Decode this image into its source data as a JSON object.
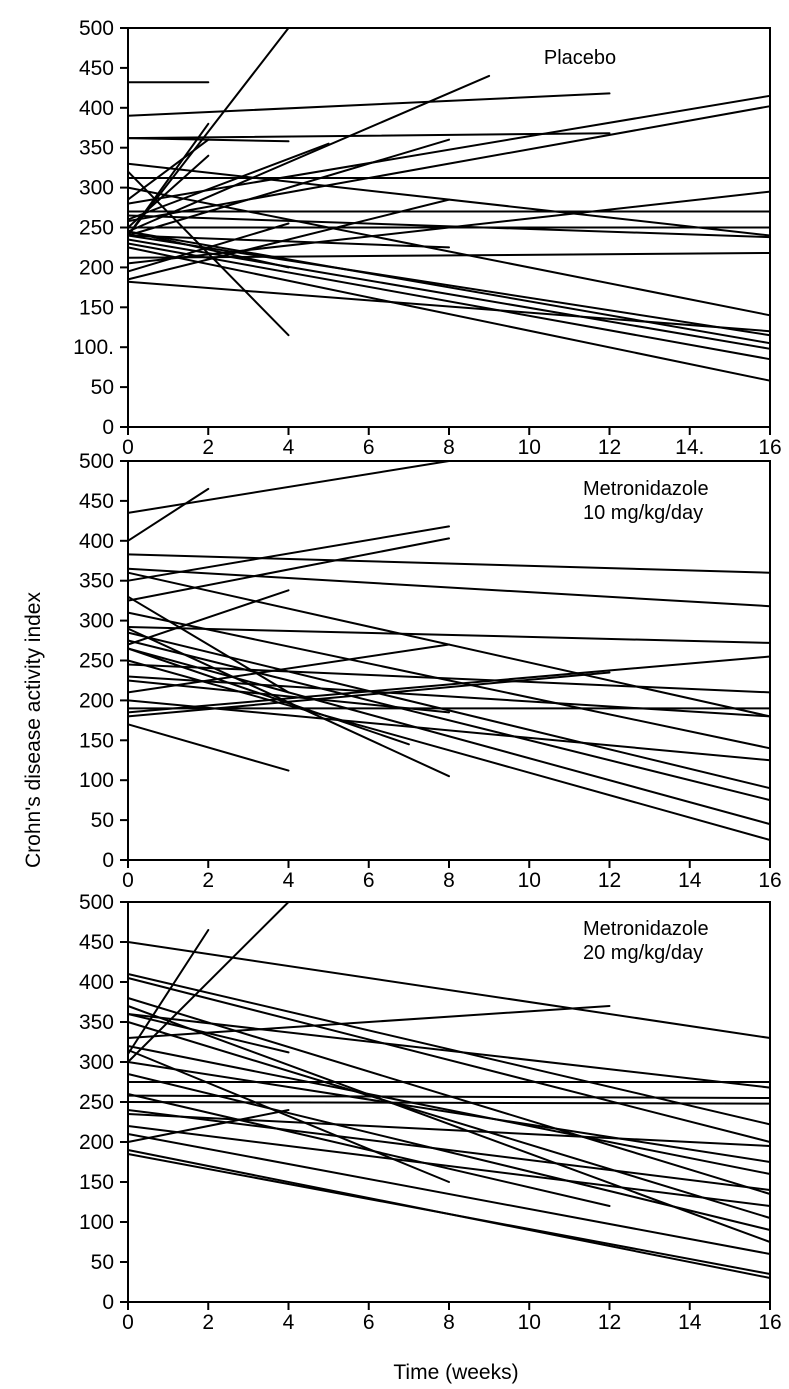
{
  "figure": {
    "ylabel": "Crohn's disease activity index",
    "xlabel": "Time (weeks)"
  },
  "chart_data": [
    {
      "type": "line",
      "label": "Placebo",
      "xlim": [
        0,
        16
      ],
      "ylim": [
        0,
        500
      ],
      "x_ticks": [
        0,
        2,
        4,
        6,
        8,
        10,
        12,
        14,
        16
      ],
      "x_tick_labels": [
        "0",
        "2",
        "4",
        "6",
        "8",
        "10",
        "12",
        "14.",
        "16"
      ],
      "y_ticks": [
        0,
        50,
        100,
        150,
        200,
        250,
        300,
        350,
        400,
        450,
        500
      ],
      "y_tick_labels": [
        "0",
        "50",
        "100.",
        "150",
        "200",
        "250",
        "300",
        "350",
        "400",
        "450",
        "500"
      ],
      "grid": false,
      "series": [
        {
          "x": [
            0,
            2
          ],
          "y": [
            432,
            432
          ]
        },
        {
          "x": [
            0,
            12
          ],
          "y": [
            390,
            418
          ]
        },
        {
          "x": [
            0,
            4
          ],
          "y": [
            362,
            358
          ]
        },
        {
          "x": [
            0,
            12
          ],
          "y": [
            362,
            368
          ]
        },
        {
          "x": [
            0,
            16
          ],
          "y": [
            312,
            312
          ]
        },
        {
          "x": [
            0,
            16
          ],
          "y": [
            300,
            140
          ]
        },
        {
          "x": [
            0,
            16
          ],
          "y": [
            270,
            270
          ]
        },
        {
          "x": [
            0,
            16
          ],
          "y": [
            280,
            415
          ]
        },
        {
          "x": [
            0,
            16
          ],
          "y": [
            258,
            402
          ]
        },
        {
          "x": [
            0,
            16
          ],
          "y": [
            265,
            238
          ]
        },
        {
          "x": [
            0,
            16
          ],
          "y": [
            250,
            250
          ]
        },
        {
          "x": [
            0,
            16
          ],
          "y": [
            240,
            115
          ]
        },
        {
          "x": [
            0,
            16
          ],
          "y": [
            235,
            98
          ]
        },
        {
          "x": [
            0,
            16
          ],
          "y": [
            230,
            85
          ]
        },
        {
          "x": [
            0,
            16
          ],
          "y": [
            225,
            58
          ]
        },
        {
          "x": [
            0,
            16
          ],
          "y": [
            205,
            295
          ]
        },
        {
          "x": [
            0,
            16
          ],
          "y": [
            212,
            218
          ]
        },
        {
          "x": [
            0,
            16
          ],
          "y": [
            182,
            120
          ]
        },
        {
          "x": [
            0,
            16
          ],
          "y": [
            245,
            105
          ]
        },
        {
          "x": [
            0,
            4
          ],
          "y": [
            240,
            500
          ]
        },
        {
          "x": [
            0,
            9
          ],
          "y": [
            245,
            440
          ]
        },
        {
          "x": [
            0,
            8
          ],
          "y": [
            240,
            360
          ]
        },
        {
          "x": [
            0,
            5
          ],
          "y": [
            260,
            355
          ]
        },
        {
          "x": [
            0,
            2
          ],
          "y": [
            240,
            380
          ]
        },
        {
          "x": [
            0,
            2
          ],
          "y": [
            285,
            360
          ]
        },
        {
          "x": [
            0,
            2
          ],
          "y": [
            250,
            340
          ]
        },
        {
          "x": [
            0,
            4
          ],
          "y": [
            320,
            115
          ]
        },
        {
          "x": [
            0,
            4
          ],
          "y": [
            195,
            255
          ]
        },
        {
          "x": [
            0,
            8
          ],
          "y": [
            185,
            285
          ]
        },
        {
          "x": [
            0,
            8
          ],
          "y": [
            240,
            225
          ]
        },
        {
          "x": [
            0,
            16
          ],
          "y": [
            330,
            240
          ]
        },
        {
          "x": [
            0,
            4
          ],
          "y": [
            245,
            200
          ]
        }
      ]
    },
    {
      "type": "line",
      "label": "Metronidazole\n10 mg/kg/day",
      "xlim": [
        0,
        16
      ],
      "ylim": [
        0,
        500
      ],
      "x_ticks": [
        0,
        2,
        4,
        6,
        8,
        10,
        12,
        14,
        16
      ],
      "x_tick_labels": [
        "0",
        "2",
        "4",
        "6",
        "8",
        "10",
        "12",
        "14",
        "16"
      ],
      "y_ticks": [
        0,
        50,
        100,
        150,
        200,
        250,
        300,
        350,
        400,
        450,
        500
      ],
      "y_tick_labels": [
        "0",
        "50",
        "100",
        "150",
        "200",
        "250",
        "300",
        "350",
        "400",
        "450",
        "500"
      ],
      "grid": false,
      "series": [
        {
          "x": [
            0,
            8
          ],
          "y": [
            435,
            500
          ]
        },
        {
          "x": [
            0,
            2
          ],
          "y": [
            400,
            465
          ]
        },
        {
          "x": [
            0,
            16
          ],
          "y": [
            383,
            360
          ]
        },
        {
          "x": [
            0,
            16
          ],
          "y": [
            365,
            318
          ]
        },
        {
          "x": [
            0,
            8
          ],
          "y": [
            350,
            418
          ]
        },
        {
          "x": [
            0,
            8
          ],
          "y": [
            325,
            403
          ]
        },
        {
          "x": [
            0,
            4
          ],
          "y": [
            270,
            338
          ]
        },
        {
          "x": [
            0,
            16
          ],
          "y": [
            292,
            272
          ]
        },
        {
          "x": [
            0,
            16
          ],
          "y": [
            360,
            180
          ]
        },
        {
          "x": [
            0,
            16
          ],
          "y": [
            310,
            140
          ]
        },
        {
          "x": [
            0,
            16
          ],
          "y": [
            285,
            90
          ]
        },
        {
          "x": [
            0,
            16
          ],
          "y": [
            275,
            75
          ]
        },
        {
          "x": [
            0,
            16
          ],
          "y": [
            265,
            45
          ]
        },
        {
          "x": [
            0,
            16
          ],
          "y": [
            250,
            25
          ]
        },
        {
          "x": [
            0,
            16
          ],
          "y": [
            245,
            210
          ]
        },
        {
          "x": [
            0,
            16
          ],
          "y": [
            230,
            180
          ]
        },
        {
          "x": [
            0,
            16
          ],
          "y": [
            185,
            255
          ]
        },
        {
          "x": [
            0,
            16
          ],
          "y": [
            190,
            190
          ]
        },
        {
          "x": [
            0,
            16
          ],
          "y": [
            200,
            125
          ]
        },
        {
          "x": [
            0,
            8
          ],
          "y": [
            210,
            270
          ]
        },
        {
          "x": [
            0,
            8
          ],
          "y": [
            290,
            105
          ]
        },
        {
          "x": [
            0,
            7
          ],
          "y": [
            265,
            145
          ]
        },
        {
          "x": [
            0,
            4
          ],
          "y": [
            170,
            112
          ]
        },
        {
          "x": [
            0,
            4
          ],
          "y": [
            330,
            210
          ]
        },
        {
          "x": [
            0,
            12
          ],
          "y": [
            180,
            235
          ]
        },
        {
          "x": [
            0,
            8
          ],
          "y": [
            225,
            185
          ]
        }
      ]
    },
    {
      "type": "line",
      "label": "Metronidazole\n20 mg/kg/day",
      "xlim": [
        0,
        16
      ],
      "ylim": [
        0,
        500
      ],
      "x_ticks": [
        0,
        2,
        4,
        6,
        8,
        10,
        12,
        14,
        16
      ],
      "x_tick_labels": [
        "0",
        "2",
        "4",
        "6",
        "8",
        "10",
        "12",
        "14",
        "16"
      ],
      "y_ticks": [
        0,
        50,
        100,
        150,
        200,
        250,
        300,
        350,
        400,
        450,
        500
      ],
      "y_tick_labels": [
        "0",
        "50",
        "100",
        "150",
        "200",
        "250",
        "300",
        "350",
        "400",
        "450",
        "500"
      ],
      "grid": false,
      "series": [
        {
          "x": [
            0,
            4
          ],
          "y": [
            300,
            500
          ]
        },
        {
          "x": [
            0,
            2
          ],
          "y": [
            310,
            465
          ]
        },
        {
          "x": [
            0,
            16
          ],
          "y": [
            450,
            330
          ]
        },
        {
          "x": [
            0,
            16
          ],
          "y": [
            410,
            222
          ]
        },
        {
          "x": [
            0,
            16
          ],
          "y": [
            405,
            200
          ]
        },
        {
          "x": [
            0,
            16
          ],
          "y": [
            380,
            135
          ]
        },
        {
          "x": [
            0,
            16
          ],
          "y": [
            370,
            75
          ]
        },
        {
          "x": [
            0,
            16
          ],
          "y": [
            360,
            268
          ]
        },
        {
          "x": [
            0,
            16
          ],
          "y": [
            350,
            105
          ]
        },
        {
          "x": [
            0,
            12
          ],
          "y": [
            330,
            370
          ]
        },
        {
          "x": [
            0,
            4
          ],
          "y": [
            360,
            312
          ]
        },
        {
          "x": [
            0,
            16
          ],
          "y": [
            320,
            160
          ]
        },
        {
          "x": [
            0,
            16
          ],
          "y": [
            300,
            175
          ]
        },
        {
          "x": [
            0,
            16
          ],
          "y": [
            285,
            90
          ]
        },
        {
          "x": [
            0,
            16
          ],
          "y": [
            275,
            275
          ]
        },
        {
          "x": [
            0,
            16
          ],
          "y": [
            258,
            255
          ]
        },
        {
          "x": [
            0,
            16
          ],
          "y": [
            250,
            248
          ]
        },
        {
          "x": [
            0,
            16
          ],
          "y": [
            240,
            140
          ]
        },
        {
          "x": [
            0,
            16
          ],
          "y": [
            235,
            195
          ]
        },
        {
          "x": [
            0,
            16
          ],
          "y": [
            220,
            120
          ]
        },
        {
          "x": [
            0,
            16
          ],
          "y": [
            210,
            60
          ]
        },
        {
          "x": [
            0,
            16
          ],
          "y": [
            190,
            30
          ]
        },
        {
          "x": [
            0,
            16
          ],
          "y": [
            185,
            35
          ]
        },
        {
          "x": [
            0,
            4
          ],
          "y": [
            200,
            240
          ]
        },
        {
          "x": [
            0,
            8
          ],
          "y": [
            315,
            150
          ]
        },
        {
          "x": [
            0,
            12
          ],
          "y": [
            260,
            120
          ]
        }
      ]
    }
  ]
}
